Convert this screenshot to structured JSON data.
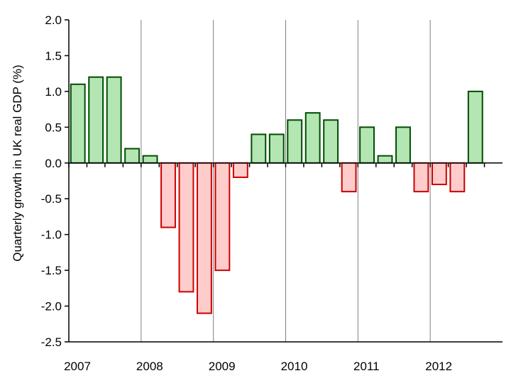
{
  "chart_data": {
    "type": "bar",
    "title": "",
    "xlabel": "",
    "ylabel": "Quarterly growth in UK real GDP (%)",
    "ylim": [
      -2.5,
      2.0
    ],
    "yticks": [
      "2.0",
      "1.5",
      "1.0",
      "0.5",
      "0.0",
      "-0.5",
      "-1.0",
      "-1.5",
      "-2.0",
      "-2.5"
    ],
    "year_labels": [
      "2007",
      "2008",
      "2009",
      "2010",
      "2011",
      "2012"
    ],
    "categories": [
      "2007 Q1",
      "2007 Q2",
      "2007 Q3",
      "2007 Q4",
      "2008 Q1",
      "2008 Q2",
      "2008 Q3",
      "2008 Q4",
      "2009 Q1",
      "2009 Q2",
      "2009 Q3",
      "2009 Q4",
      "2010 Q1",
      "2010 Q2",
      "2010 Q3",
      "2010 Q4",
      "2011 Q1",
      "2011 Q2",
      "2011 Q3",
      "2011 Q4",
      "2012 Q1",
      "2012 Q2",
      "2012 Q3"
    ],
    "values": [
      1.1,
      1.2,
      1.2,
      0.2,
      0.1,
      -0.9,
      -1.8,
      -2.1,
      -1.5,
      -0.2,
      0.4,
      0.4,
      0.6,
      0.7,
      0.6,
      -0.4,
      0.5,
      0.1,
      0.5,
      -0.4,
      -0.3,
      -0.4,
      1.0
    ],
    "grid": "vertical lines at year boundaries",
    "colors": {
      "positive_fill": "#b3e6b3",
      "positive_stroke": "#004d00",
      "negative_fill": "#ffcccc",
      "negative_stroke": "#cc0000",
      "gridline": "#808080",
      "axis": "#000000"
    }
  }
}
